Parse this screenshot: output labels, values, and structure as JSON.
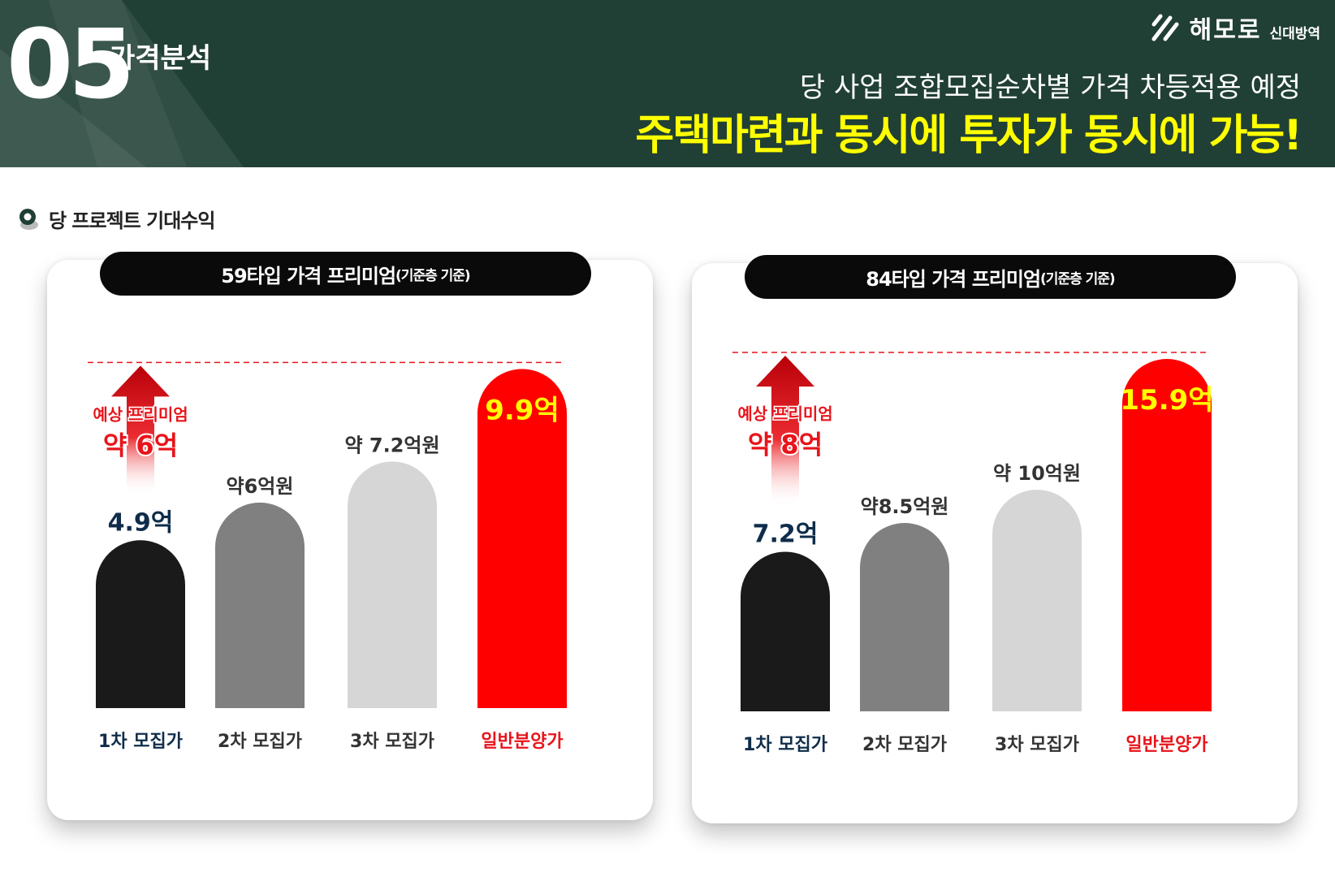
{
  "header": {
    "section_number": "05",
    "section_title": "가격분석",
    "logo_name": "해모로",
    "logo_sub": "신대방역",
    "headline_1": "당 사업 조합모집순차별 가격 차등적용 예정",
    "headline_2": "주택마련과 동시에 투자가 동시에 가능!"
  },
  "section_label": "당 프로젝트 기대수익",
  "colors": {
    "header_bg": "#203f35",
    "headline_yellow": "#ffff00",
    "bar_1": "#1a1a1a",
    "bar_2": "#808080",
    "bar_3": "#d6d6d6",
    "bar_general": "#ff0000",
    "navy_text": "#0f2d4a",
    "red_text": "#e8141b"
  },
  "chart_data": [
    {
      "type": "bar",
      "title": "59타입 가격 프리미엄",
      "subtitle": "(기준층 기준)",
      "unit": "억",
      "categories": [
        "1차 모집가",
        "2차 모집가",
        "3차 모집가",
        "일반분양가"
      ],
      "values": [
        4.9,
        6.0,
        7.2,
        9.9
      ],
      "value_labels": [
        "4.9억",
        "약6억원",
        "약 7.2억원",
        "9.9억"
      ],
      "reference_line": 9.9,
      "annotation": {
        "line1": "예상 프리미엄",
        "line2": "약 6억"
      },
      "ylim": [
        0,
        11
      ]
    },
    {
      "type": "bar",
      "title": "84타입 가격 프리미엄",
      "subtitle": "(기준층 기준)",
      "unit": "억",
      "categories": [
        "1차 모집가",
        "2차 모집가",
        "3차 모집가",
        "일반분양가"
      ],
      "values": [
        7.2,
        8.5,
        10.0,
        15.9
      ],
      "value_labels": [
        "7.2억",
        "약8.5억원",
        "약 10억원",
        "15.9억"
      ],
      "reference_line": 15.9,
      "annotation": {
        "line1": "예상 프리미엄",
        "line2": "약 8억"
      },
      "ylim": [
        0,
        17
      ]
    }
  ]
}
